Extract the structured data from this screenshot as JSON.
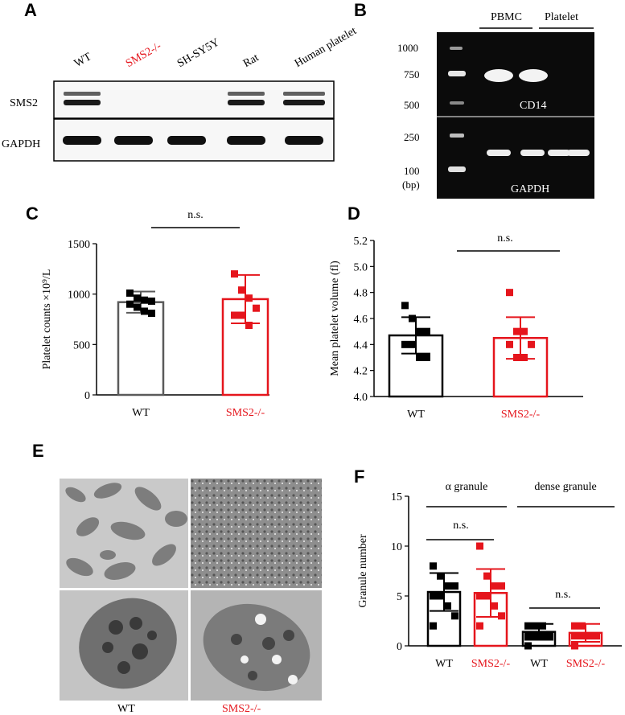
{
  "panels": {
    "A": "A",
    "B": "B",
    "C": "C",
    "D": "D",
    "E": "E",
    "F": "F"
  },
  "colors": {
    "wt": "#5a5a5a",
    "ko": "#e5151c",
    "black": "#000000"
  },
  "panelA": {
    "lanes": [
      "WT",
      "SMS2-/-",
      "SH-SY5Y",
      "Rat",
      "Human platelet"
    ],
    "rows": [
      "SMS2",
      "GAPDH"
    ],
    "sms2_band_presence": [
      1,
      0,
      0,
      1,
      1
    ],
    "gapdh_band_presence": [
      1,
      1,
      1,
      1,
      1
    ]
  },
  "panelB": {
    "groups": [
      "PBMC",
      "Platelet"
    ],
    "ladder": [
      "1000",
      "750",
      "500",
      "250",
      "100"
    ],
    "unit": "(bp)",
    "gels": [
      "CD14",
      "GAPDH"
    ]
  },
  "panelE": {
    "labels": [
      "WT",
      "SMS2-/-"
    ]
  },
  "chart_data": [
    {
      "type": "bar",
      "ylabel": "Platelet counts ×10⁹/L",
      "categories": [
        "WT",
        "SMS2-/-"
      ],
      "means": [
        920,
        950
      ],
      "sd": [
        105,
        240
      ],
      "ylim": [
        0,
        1500
      ],
      "yticks": [
        "0",
        "500",
        "1000",
        "1500"
      ],
      "points": [
        [
          1010,
          960,
          940,
          930,
          900,
          870,
          830,
          810
        ],
        [
          1200,
          1040,
          960,
          860,
          790,
          790,
          690
        ]
      ],
      "significance": "n.s."
    },
    {
      "type": "bar",
      "ylabel": "Mean platelet volume (fl)",
      "categories": [
        "WT",
        "SMS2-/-"
      ],
      "means": [
        4.47,
        4.45
      ],
      "sd": [
        0.14,
        0.16
      ],
      "ylim": [
        4.0,
        5.2
      ],
      "yticks": [
        "4.0",
        "4.2",
        "4.4",
        "4.6",
        "4.8",
        "5.0",
        "5.2"
      ],
      "points": [
        [
          4.7,
          4.6,
          4.5,
          4.5,
          4.4,
          4.4,
          4.3,
          4.3
        ],
        [
          4.8,
          4.5,
          4.5,
          4.4,
          4.4,
          4.3,
          4.3
        ]
      ],
      "significance": "n.s."
    },
    {
      "type": "bar",
      "ylabel": "Granule number",
      "groups": [
        "α granule",
        "dense granule"
      ],
      "categories": [
        "WT",
        "SMS2-/-",
        "WT",
        "SMS2-/-"
      ],
      "means": [
        5.4,
        5.3,
        1.4,
        1.3
      ],
      "sd": [
        1.9,
        2.4,
        0.8,
        0.9
      ],
      "ylim": [
        0,
        15
      ],
      "yticks": [
        "0",
        "5",
        "10",
        "15"
      ],
      "points": [
        [
          8,
          7,
          6,
          6,
          5,
          5,
          4,
          3,
          2
        ],
        [
          10,
          7,
          6,
          6,
          5,
          5,
          4,
          3,
          2
        ],
        [
          2,
          2,
          2,
          1,
          1,
          1,
          1,
          1,
          0
        ],
        [
          2,
          2,
          1,
          1,
          1,
          1,
          1,
          1,
          0
        ]
      ],
      "significance": [
        "n.s.",
        "n.s."
      ]
    }
  ]
}
